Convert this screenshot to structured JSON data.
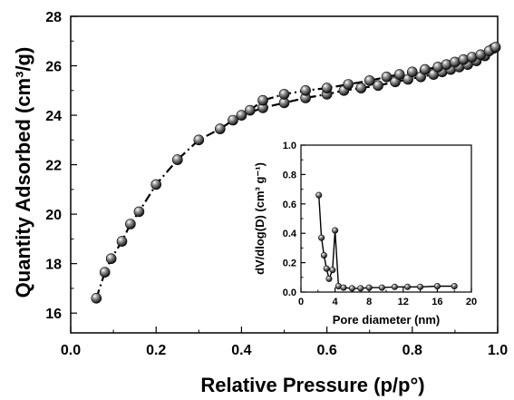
{
  "chart_data": [
    {
      "type": "scatter",
      "xlabel": "Relative Pressure (p/p°)",
      "ylabel": "Quantity Adsorbed (cm³/g)",
      "xlim": [
        0.0,
        1.0
      ],
      "ylim": [
        15.2,
        28.0
      ],
      "xticks": [
        "0.0",
        "0.2",
        "0.4",
        "0.6",
        "0.8",
        "1.0"
      ],
      "yticks": [
        "16",
        "18",
        "20",
        "22",
        "24",
        "26",
        "28"
      ],
      "grid": false,
      "series": [
        {
          "role": "adsorption",
          "x": [
            0.06,
            0.08,
            0.095,
            0.12,
            0.14,
            0.16,
            0.2,
            0.25,
            0.3,
            0.35,
            0.38,
            0.4,
            0.45,
            0.5,
            0.55,
            0.6,
            0.64,
            0.68,
            0.72,
            0.76,
            0.79,
            0.82,
            0.85,
            0.87,
            0.89,
            0.91,
            0.93,
            0.95,
            0.97,
            0.99
          ],
          "y": [
            16.6,
            17.65,
            18.2,
            18.9,
            19.6,
            20.1,
            21.2,
            22.2,
            23.0,
            23.45,
            23.8,
            24.0,
            24.3,
            24.5,
            24.7,
            24.85,
            25.0,
            25.1,
            25.2,
            25.35,
            25.45,
            25.55,
            25.65,
            25.75,
            25.85,
            25.95,
            26.05,
            26.2,
            26.4,
            26.7
          ]
        },
        {
          "role": "desorption",
          "x": [
            0.42,
            0.45,
            0.5,
            0.55,
            0.6,
            0.65,
            0.7,
            0.74,
            0.77,
            0.8,
            0.83,
            0.86,
            0.88,
            0.9,
            0.92,
            0.94,
            0.96,
            0.98,
            0.995
          ],
          "y": [
            24.2,
            24.6,
            24.85,
            25.0,
            25.1,
            25.25,
            25.4,
            25.55,
            25.65,
            25.75,
            25.85,
            25.95,
            26.05,
            26.15,
            26.25,
            26.35,
            26.45,
            26.6,
            26.75
          ]
        }
      ]
    },
    {
      "type": "line",
      "role": "inset",
      "xlabel": "Pore diameter (nm)",
      "ylabel": "dV/dlog(D) (cm³ g⁻¹)",
      "xlim": [
        0,
        20
      ],
      "ylim": [
        0.0,
        1.0
      ],
      "xticks": [
        "0",
        "4",
        "8",
        "12",
        "16",
        "20"
      ],
      "yticks": [
        "0.0",
        "0.2",
        "0.4",
        "0.6",
        "0.8",
        "1.0"
      ],
      "series": [
        {
          "x": [
            2.1,
            2.4,
            2.7,
            3.0,
            3.3,
            3.7,
            4.0,
            4.4,
            5.0,
            6.0,
            7.0,
            8.0,
            9.5,
            11.0,
            12.5,
            14.0,
            16.0,
            18.0
          ],
          "y": [
            0.66,
            0.37,
            0.25,
            0.16,
            0.09,
            0.15,
            0.42,
            0.04,
            0.03,
            0.025,
            0.025,
            0.03,
            0.03,
            0.035,
            0.035,
            0.035,
            0.04,
            0.04
          ]
        }
      ]
    }
  ]
}
